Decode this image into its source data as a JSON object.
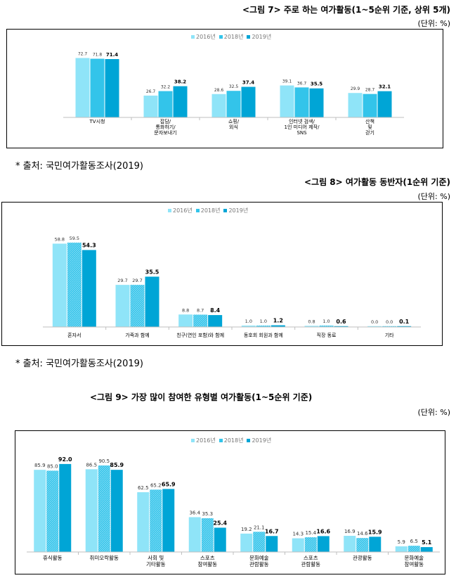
{
  "colors": {
    "s2016": "#8fe4f8",
    "s2018": "#33c4ea",
    "s2019": "#00a5d6",
    "axis": "#bfbfbf"
  },
  "figures": [
    {
      "title": "<그림 7> 주로 하는 여가활동(1~5순위 기준, 상위 5개)",
      "unit": "(단위: %)",
      "source": "* 출처: 국민여가활동조사(2019)"
    },
    {
      "title": "<그림 8> 여가활동 동반자(1순위 기준)",
      "unit": "(단위: %)",
      "source": "* 출처: 국민여가활동조사(2019)"
    },
    {
      "title": "<그림 9> 가장 많이 참여한 유형별 여가활동(1~5순위 기준)",
      "unit": "(단위: %)"
    }
  ],
  "chart_data": [
    {
      "type": "bar",
      "title": "<그림 7> 주로 하는 여가활동(1~5순위 기준, 상위 5개)",
      "categories": [
        "TV시청",
        "잡담/\n통화하기/\n문자보내기",
        "쇼핑/\n외식",
        "인터넷 검색/\n1인 미디어 제작/\nSNS",
        "산책\n및\n걷기"
      ],
      "series": [
        {
          "name": "2016년",
          "values": [
            72.7,
            26.7,
            28.6,
            39.1,
            29.9
          ],
          "labels": [
            "72.7",
            "26.7",
            "28.6",
            "39.1",
            "29.9"
          ]
        },
        {
          "name": "2018년",
          "values": [
            71.8,
            32.2,
            32.5,
            36.7,
            28.7
          ],
          "labels": [
            "71.8",
            "32.2",
            "32.5",
            "36.7",
            "28.7"
          ]
        },
        {
          "name": "2019년",
          "values": [
            71.4,
            38.2,
            37.4,
            35.5,
            32.1
          ],
          "labels": [
            "71.4",
            "38.2",
            "37.4",
            "35.5",
            "32.1"
          ]
        }
      ],
      "ylim": [
        0,
        80
      ],
      "grid": false,
      "legend": "top-center"
    },
    {
      "type": "bar",
      "title": "<그림 8> 여가활동 동반자(1순위 기준)",
      "categories": [
        "혼자서",
        "가족과 함께",
        "친구(연인 포함)와 함께",
        "동호회 회원과 함께",
        "직장 동료",
        "기타"
      ],
      "series": [
        {
          "name": "2016년",
          "values": [
            58.8,
            29.7,
            8.8,
            1.0,
            0.8,
            0.0
          ],
          "labels": [
            "58.8",
            "29.7",
            "8.8",
            "1.0",
            "0.8",
            "0.0"
          ]
        },
        {
          "name": "2018년",
          "values": [
            59.5,
            29.7,
            8.7,
            1.0,
            1.0,
            0.0
          ],
          "labels": [
            "59.5",
            "29.7",
            "8.7",
            "1.0",
            "1.0",
            "0.0"
          ]
        },
        {
          "name": "2019년",
          "values": [
            54.3,
            35.5,
            8.4,
            1.2,
            0.6,
            0.1
          ],
          "labels": [
            "54.3",
            "35.5",
            "8.4",
            "1.2",
            "0.6",
            "0.1"
          ]
        }
      ],
      "ylim": [
        0,
        65
      ],
      "grid": false,
      "legend": "top-center"
    },
    {
      "type": "bar",
      "title": "<그림 9> 가장 많이 참여한 유형별 여가활동(1~5순위 기준)",
      "categories": [
        "휴식활동",
        "취미오락활동",
        "사회 및\n기타활동",
        "스포츠\n참여활동",
        "문화예술\n관람활동",
        "스포츠\n관람활동",
        "관광활동",
        "문화예술\n참여활동"
      ],
      "series": [
        {
          "name": "2016년",
          "values": [
            85.9,
            86.5,
            62.5,
            36.4,
            19.2,
            14.3,
            16.9,
            5.9
          ],
          "labels": [
            "85.9",
            "86.5",
            "62.5",
            "36.4",
            "19.2",
            "14.3",
            "16.9",
            "5.9"
          ]
        },
        {
          "name": "2018년",
          "values": [
            85.0,
            90.5,
            65.2,
            35.3,
            21.1,
            15.4,
            14.6,
            6.5
          ],
          "labels": [
            "85.0",
            "90.5",
            "65.2",
            "35.3",
            "21.1",
            "15.4",
            "14.6",
            "6.5"
          ]
        },
        {
          "name": "2019년",
          "values": [
            92.0,
            85.9,
            65.9,
            25.4,
            16.7,
            16.6,
            15.9,
            5.1
          ],
          "labels": [
            "92.0",
            "85.9",
            "65.9",
            "25.4",
            "16.7",
            "16.6",
            "15.9",
            "5.1"
          ]
        }
      ],
      "ylim": [
        0,
        100
      ],
      "grid": false,
      "legend": "top-center"
    }
  ]
}
